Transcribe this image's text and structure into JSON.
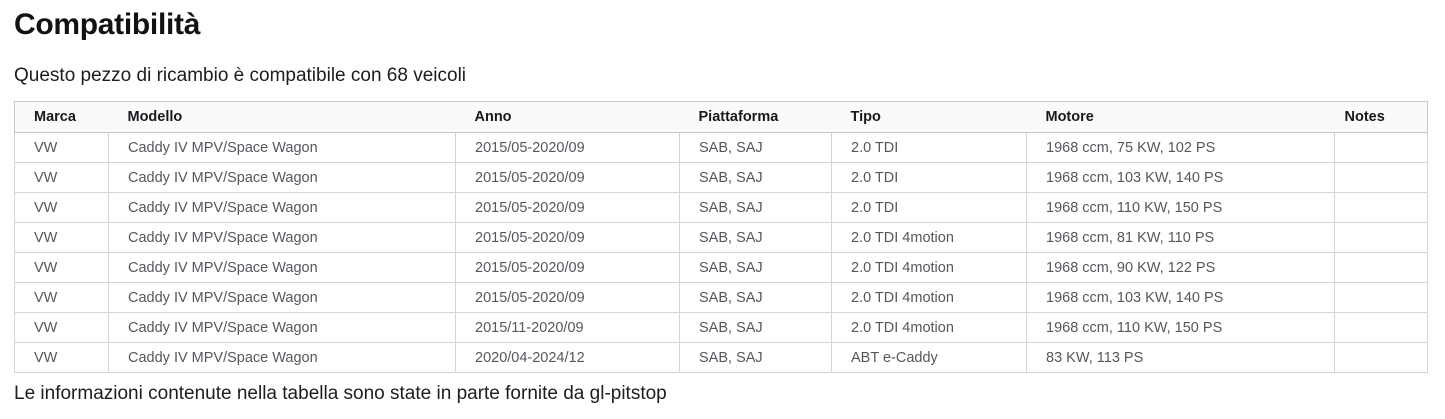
{
  "title": "Compatibilità",
  "subtitle": "Questo pezzo di ricambio è compatibile con 68 veicoli",
  "table": {
    "columns": [
      "Marca",
      "Modello",
      "Anno",
      "Piattaforma",
      "Tipo",
      "Motore",
      "Notes"
    ],
    "column_keys": [
      "marca",
      "modello",
      "anno",
      "piattaforma",
      "tipo",
      "motore",
      "notes"
    ],
    "rows": [
      [
        "VW",
        "Caddy IV MPV/Space Wagon",
        "2015/05-2020/09",
        "SAB, SAJ",
        "2.0 TDI",
        "1968 ccm, 75 KW, 102 PS",
        ""
      ],
      [
        "VW",
        "Caddy IV MPV/Space Wagon",
        "2015/05-2020/09",
        "SAB, SAJ",
        "2.0 TDI",
        "1968 ccm, 103 KW, 140 PS",
        ""
      ],
      [
        "VW",
        "Caddy IV MPV/Space Wagon",
        "2015/05-2020/09",
        "SAB, SAJ",
        "2.0 TDI",
        "1968 ccm, 110 KW, 150 PS",
        ""
      ],
      [
        "VW",
        "Caddy IV MPV/Space Wagon",
        "2015/05-2020/09",
        "SAB, SAJ",
        "2.0 TDI 4motion",
        "1968 ccm, 81 KW, 110 PS",
        ""
      ],
      [
        "VW",
        "Caddy IV MPV/Space Wagon",
        "2015/05-2020/09",
        "SAB, SAJ",
        "2.0 TDI 4motion",
        "1968 ccm, 90 KW, 122 PS",
        ""
      ],
      [
        "VW",
        "Caddy IV MPV/Space Wagon",
        "2015/05-2020/09",
        "SAB, SAJ",
        "2.0 TDI 4motion",
        "1968 ccm, 103 KW, 140 PS",
        ""
      ],
      [
        "VW",
        "Caddy IV MPV/Space Wagon",
        "2015/11-2020/09",
        "SAB, SAJ",
        "2.0 TDI 4motion",
        "1968 ccm, 110 KW, 150 PS",
        ""
      ],
      [
        "VW",
        "Caddy IV MPV/Space Wagon",
        "2020/04-2024/12",
        "SAB, SAJ",
        "ABT e-Caddy",
        "83 KW, 113 PS",
        ""
      ]
    ]
  },
  "footer_note": "Le informazioni contenute nella tabella sono state in parte fornite da gl-pitstop",
  "colors": {
    "table_border_outer": "#c6c7cb",
    "table_border_inner": "#d4d5d9",
    "header_text": "#17191c",
    "cell_text": "#54575d",
    "title_text": "#111214"
  }
}
